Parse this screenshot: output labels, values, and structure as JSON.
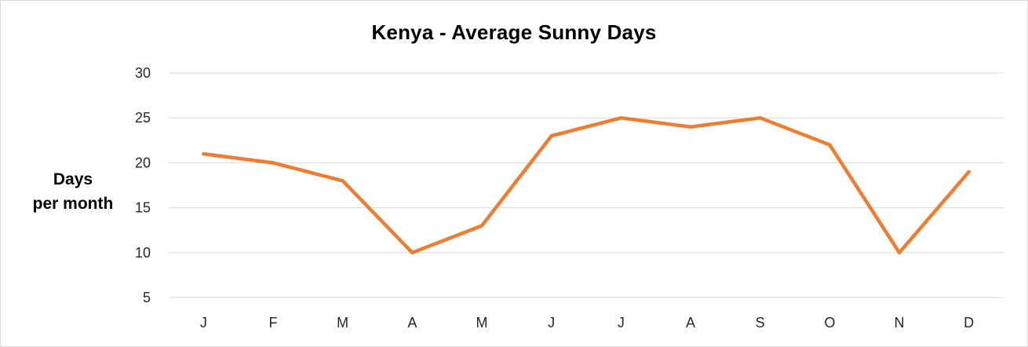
{
  "chart_data": {
    "type": "line",
    "title": "Kenya - Average Sunny Days",
    "ylabel_lines": [
      "Days",
      "per month"
    ],
    "xlabel": "",
    "categories": [
      "J",
      "F",
      "M",
      "A",
      "M",
      "J",
      "J",
      "A",
      "S",
      "O",
      "N",
      "D"
    ],
    "series": [
      {
        "values": [
          21,
          20,
          18,
          10,
          13,
          23,
          25,
          24,
          25,
          22,
          10,
          19
        ],
        "color": "#ed7d31"
      }
    ],
    "ylim": [
      5,
      30
    ],
    "yticks": [
      5,
      10,
      15,
      20,
      25,
      30
    ],
    "grid": true,
    "legend": "none"
  }
}
